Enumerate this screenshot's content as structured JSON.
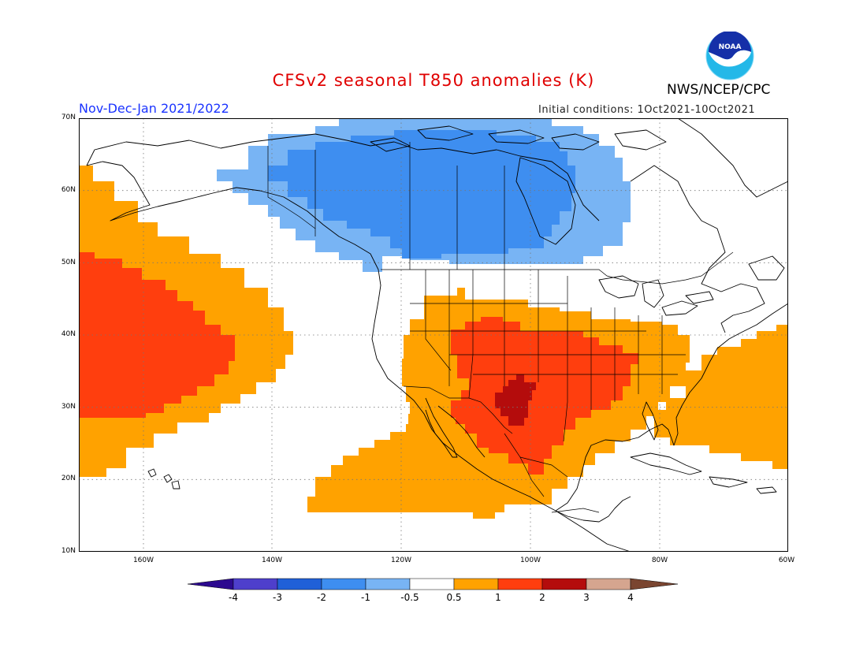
{
  "header": {
    "title": "CFSv2 seasonal T850 anomalies (K)",
    "agency": "NWS/NCEP/CPC",
    "logo_text": "NOAA",
    "period": "Nov-Dec-Jan 2021/2022",
    "initial_conditions": "Initial conditions: 1Oct2021-10Oct2021"
  },
  "map": {
    "region": "North America & NE Pacific",
    "lat_labels": [
      "70N",
      "60N",
      "50N",
      "40N",
      "30N",
      "20N",
      "10N"
    ],
    "lon_labels": [
      "160W",
      "140W",
      "120W",
      "100W",
      "80W",
      "60W"
    ],
    "lon_range": [
      -171,
      -60
    ],
    "lat_range": [
      10,
      70
    ],
    "grid": "dotted"
  },
  "colorbar": {
    "levels": [
      "-4",
      "-3",
      "-2",
      "-1",
      "-0.5",
      "0.5",
      "1",
      "2",
      "3",
      "4"
    ],
    "colors": {
      "lt_minus4": "#2c0a8f",
      "m4_m3": "#4e3fcc",
      "m3_m2": "#2060d8",
      "m2_m1": "#3e8ef0",
      "m1_m05": "#78b4f4",
      "m05_05": "#ffffff",
      "p05_1": "#ffa200",
      "p1_2": "#ff3e0e",
      "p2_3": "#b40c0c",
      "p3_4": "#d5a58f",
      "gt4": "#7a4530"
    }
  },
  "anomaly_regions": [
    {
      "name": "Canada cold anomaly (outer)",
      "category": "-1 to -0.5"
    },
    {
      "name": "Canada cold anomaly (core)",
      "category": "-2 to -1"
    },
    {
      "name": "NE Pacific warm anomaly (outer)",
      "category": "0.5 to 1"
    },
    {
      "name": "NE Pacific warm anomaly (core)",
      "category": "1 to 2"
    },
    {
      "name": "Southern US / Mexico warm anomaly (outer)",
      "category": "0.5 to 1"
    },
    {
      "name": "South-central US warm anomaly (core)",
      "category": "1 to 2"
    },
    {
      "name": "Texas / N Mexico maximum",
      "category": "2 to 3"
    },
    {
      "name": "Western Atlantic warm anomaly",
      "category": "0.5 to 1"
    }
  ]
}
